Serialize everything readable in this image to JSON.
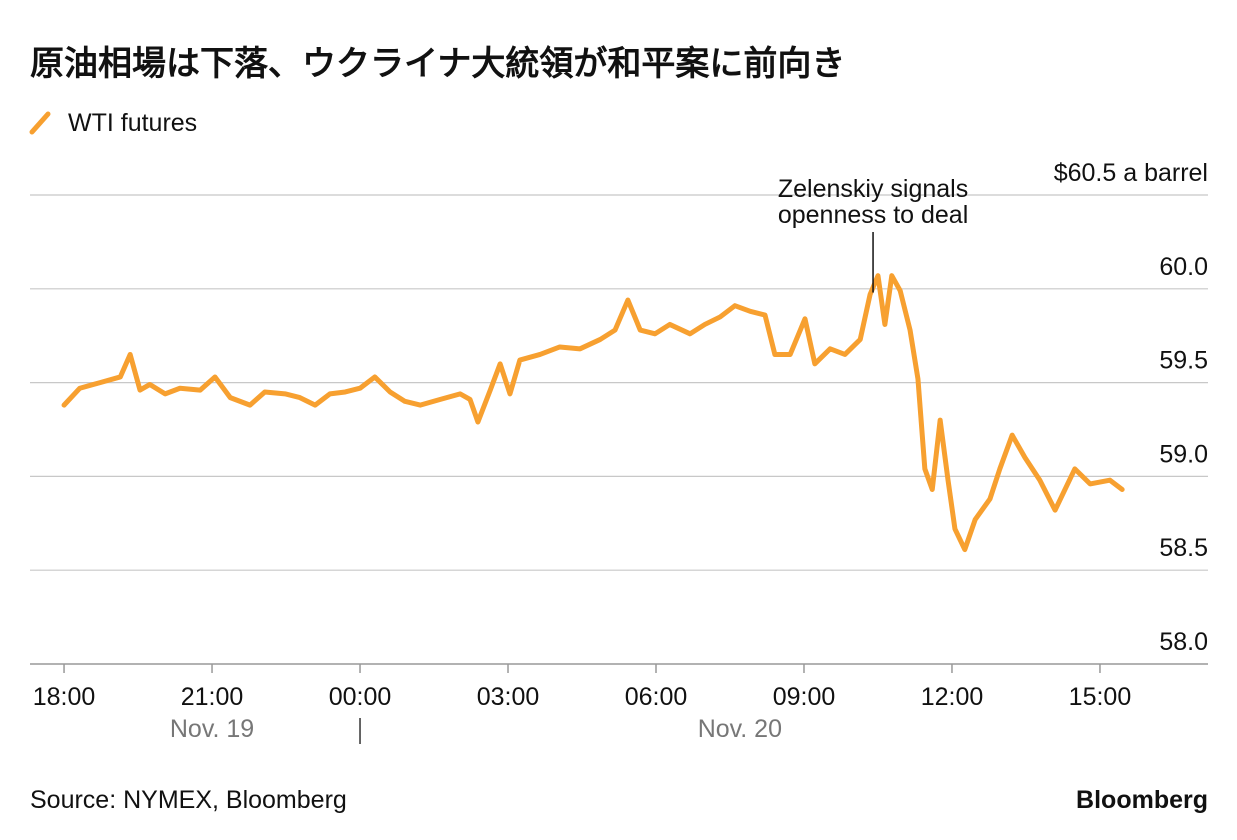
{
  "chart_data": {
    "type": "line",
    "title": "原油相場は下落、ウクライナ大統領が和平案に前向き",
    "source": "Source: NYMEX, Bloomberg",
    "brand": "Bloomberg",
    "x": [
      0,
      0.32,
      0.73,
      1.14,
      1.34,
      1.54,
      1.74,
      2.05,
      2.35,
      2.76,
      3.06,
      3.37,
      3.77,
      4.07,
      4.48,
      4.78,
      5.09,
      5.39,
      5.7,
      6.0,
      6.3,
      6.61,
      6.91,
      7.22,
      7.62,
      8.03,
      8.23,
      8.39,
      8.64,
      8.84,
      9.04,
      9.24,
      9.65,
      10.05,
      10.46,
      10.87,
      11.17,
      11.43,
      11.68,
      11.98,
      12.28,
      12.69,
      12.99,
      13.3,
      13.6,
      13.91,
      14.21,
      14.41,
      14.72,
      15.02,
      15.22,
      15.53,
      15.83,
      16.14,
      16.34,
      16.5,
      16.64,
      16.78,
      16.95,
      17.15,
      17.31,
      17.45,
      17.6,
      17.76,
      17.92,
      18.06,
      18.26,
      18.47,
      18.77,
      18.97,
      19.22,
      19.48,
      19.78,
      20.09,
      20.29,
      20.49,
      20.8,
      21.2,
      21.45
    ],
    "series": [
      {
        "name": "WTI futures",
        "color": "#f7a030",
        "values": [
          59.38,
          59.47,
          59.5,
          59.53,
          59.65,
          59.46,
          59.49,
          59.44,
          59.47,
          59.46,
          59.53,
          59.42,
          59.38,
          59.45,
          59.44,
          59.42,
          59.38,
          59.44,
          59.45,
          59.47,
          59.53,
          59.45,
          59.4,
          59.38,
          59.41,
          59.44,
          59.41,
          59.29,
          59.46,
          59.6,
          59.44,
          59.62,
          59.65,
          59.69,
          59.68,
          59.73,
          59.78,
          59.94,
          59.78,
          59.76,
          59.81,
          59.76,
          59.81,
          59.85,
          59.91,
          59.88,
          59.86,
          59.65,
          59.65,
          59.84,
          59.6,
          59.68,
          59.65,
          59.73,
          59.97,
          60.07,
          59.81,
          60.07,
          59.99,
          59.78,
          59.52,
          59.04,
          58.93,
          59.3,
          58.98,
          58.72,
          58.61,
          58.77,
          58.88,
          59.04,
          59.22,
          59.1,
          58.98,
          58.82,
          58.93,
          59.04,
          58.96,
          58.98,
          58.93
        ]
      }
    ],
    "xlim": [
      -0.69,
      23.19
    ],
    "xticks": [
      {
        "value": 0,
        "label": "18:00"
      },
      {
        "value": 3,
        "label": "21:00"
      },
      {
        "value": 6,
        "label": "00:00"
      },
      {
        "value": 9,
        "label": "03:00"
      },
      {
        "value": 12,
        "label": "06:00"
      },
      {
        "value": 15,
        "label": "09:00"
      },
      {
        "value": 18,
        "label": "12:00"
      },
      {
        "value": 21,
        "label": "15:00"
      }
    ],
    "day_labels": [
      {
        "value": 3,
        "label": "Nov. 19"
      },
      {
        "value": 13.7,
        "label": "Nov. 20"
      }
    ],
    "day_divider": 6,
    "ylim": [
      58,
      60.5
    ],
    "yticks": [
      {
        "value": 58,
        "label": "58.0"
      },
      58.5,
      {
        "value": 59,
        "label": "59.0"
      },
      59.5,
      {
        "value": 60,
        "label": "60.0"
      },
      {
        "value": 60.5,
        "label": "$60.5 a barrel"
      }
    ],
    "grid": true,
    "annotation": {
      "text": [
        "Zelenskiy signals",
        "openness to deal"
      ],
      "x": 16.4,
      "y": 59.98
    }
  }
}
